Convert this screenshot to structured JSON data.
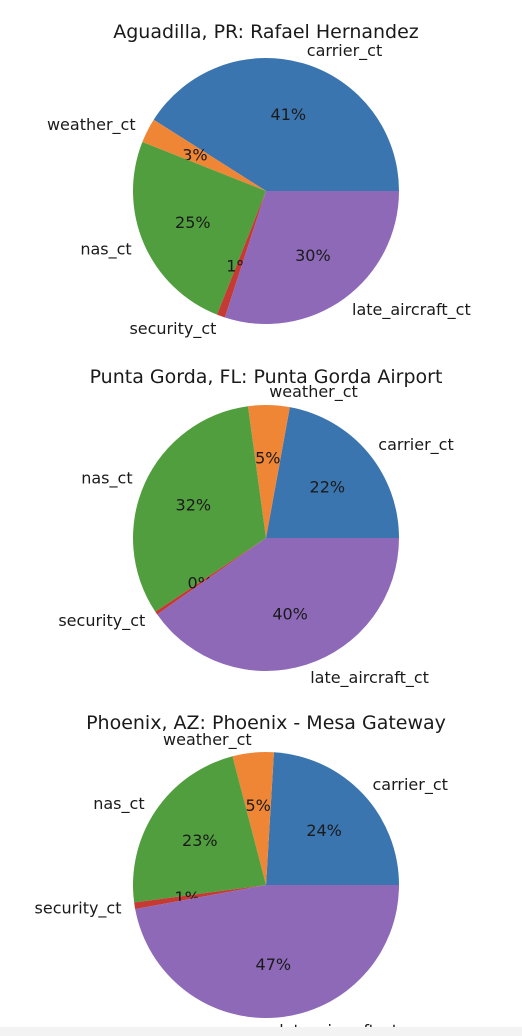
{
  "colors": {
    "carrier_ct": "#3b75af",
    "weather_ct": "#ef8636",
    "nas_ct": "#519e3e",
    "security_ct": "#c53a32",
    "late_aircraft_ct": "#8d69b8"
  },
  "chart_data": [
    {
      "type": "pie",
      "title": "Aguadilla, PR: Rafael Hernandez",
      "categories": [
        "carrier_ct",
        "weather_ct",
        "nas_ct",
        "security_ct",
        "late_aircraft_ct"
      ],
      "values": [
        41,
        3,
        25,
        1,
        30
      ],
      "labels": [
        "41%",
        "3%",
        "25%",
        "1%",
        "30%"
      ]
    },
    {
      "type": "pie",
      "title": "Punta Gorda, FL: Punta Gorda Airport",
      "categories": [
        "carrier_ct",
        "weather_ct",
        "nas_ct",
        "security_ct",
        "late_aircraft_ct"
      ],
      "values": [
        22,
        5,
        32,
        0.4,
        40
      ],
      "labels": [
        "22%",
        "5%",
        "32%",
        "0%",
        "40%"
      ]
    },
    {
      "type": "pie",
      "title": "Phoenix, AZ: Phoenix - Mesa Gateway",
      "categories": [
        "carrier_ct",
        "weather_ct",
        "nas_ct",
        "security_ct",
        "late_aircraft_ct"
      ],
      "values": [
        24,
        5,
        23,
        0.8,
        47
      ],
      "labels": [
        "24%",
        "5%",
        "23%",
        "1%",
        "47%"
      ]
    }
  ]
}
